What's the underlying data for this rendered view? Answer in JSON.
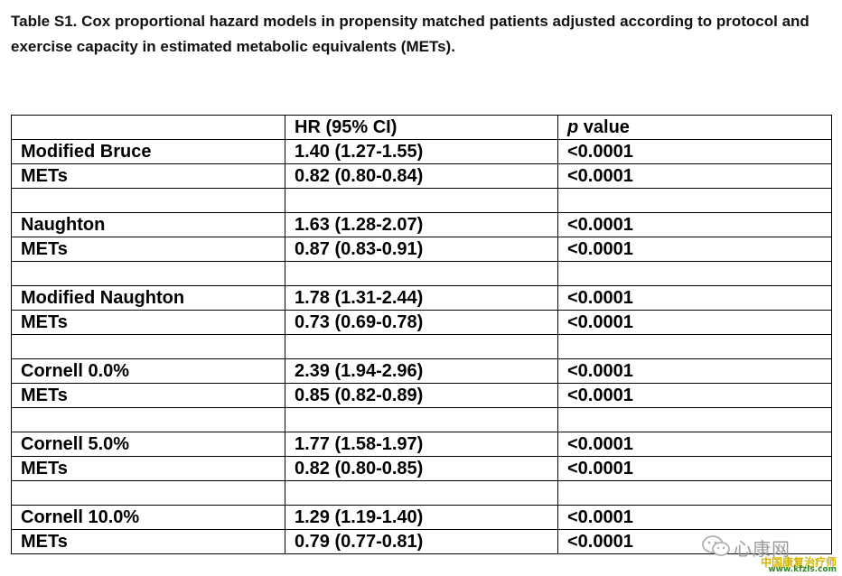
{
  "caption": "Table S1. Cox proportional hazard models in propensity matched patients adjusted according to protocol and exercise capacity in estimated metabolic equivalents (METs).",
  "table": {
    "headers": [
      "",
      "HR (95% CI)",
      "p value"
    ],
    "rows": [
      [
        "Modified Bruce",
        "1.40 (1.27-1.55)",
        "<0.0001"
      ],
      [
        "METs",
        "0.82 (0.80-0.84)",
        "<0.0001"
      ],
      [
        "",
        "",
        ""
      ],
      [
        "Naughton",
        "1.63 (1.28-2.07)",
        "<0.0001"
      ],
      [
        "METs",
        "0.87 (0.83-0.91)",
        "<0.0001"
      ],
      [
        "",
        "",
        ""
      ],
      [
        "Modified Naughton",
        "1.78 (1.31-2.44)",
        "<0.0001"
      ],
      [
        "METs",
        "0.73 (0.69-0.78)",
        "<0.0001"
      ],
      [
        "",
        "",
        ""
      ],
      [
        "Cornell 0.0%",
        "2.39 (1.94-2.96)",
        "<0.0001"
      ],
      [
        "METs",
        "0.85 (0.82-0.89)",
        "<0.0001"
      ],
      [
        "",
        "",
        ""
      ],
      [
        "Cornell 5.0%",
        "1.77 (1.58-1.97)",
        "<0.0001"
      ],
      [
        "METs",
        "0.82 (0.80-0.85)",
        "<0.0001"
      ],
      [
        "",
        "",
        ""
      ],
      [
        "Cornell 10.0%",
        "1.29 (1.19-1.40)",
        "<0.0001"
      ],
      [
        "METs",
        "0.79 (0.77-0.81)",
        "<0.0001"
      ]
    ]
  },
  "watermark": {
    "name": "心康网",
    "org": "中国康复治疗师",
    "url": "www.kfzls.com",
    "icon": "wechat-icon"
  }
}
